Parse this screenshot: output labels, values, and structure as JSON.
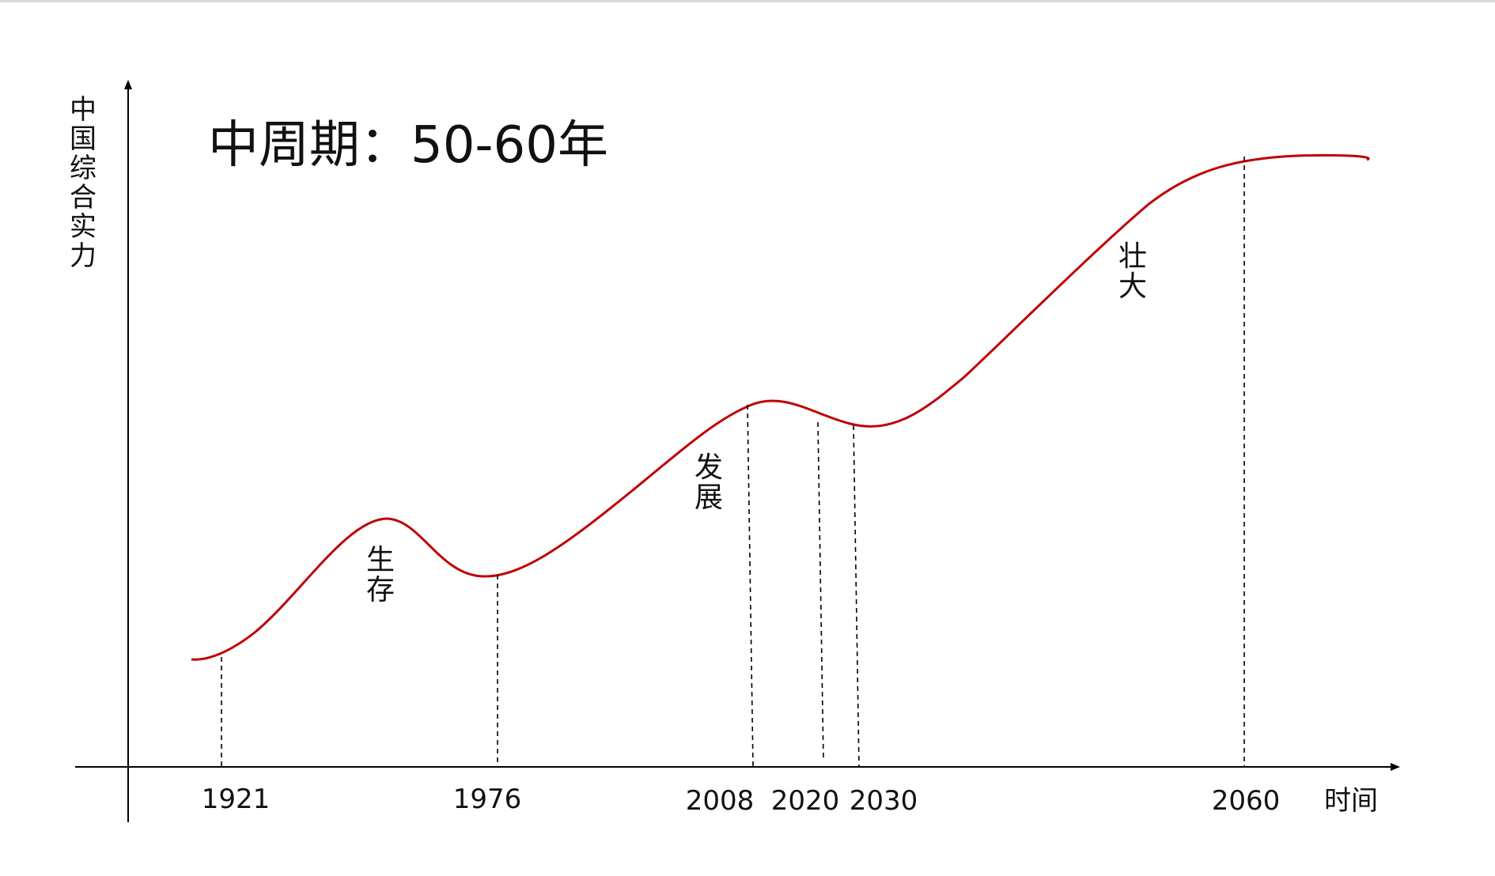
{
  "title": "中周期：50-60年",
  "y_axis_label": "中国综合实力",
  "x_axis_label": "时间",
  "stage_labels": {
    "survival": "生存",
    "development": "发展",
    "growth": "壮大"
  },
  "year_labels": {
    "y1921": "1921",
    "y1976": "1976",
    "y2008": "2008",
    "y2020": "2020",
    "y2030": "2030",
    "y2060": "2060"
  },
  "colors": {
    "curve": "#c00000",
    "axis": "#000000",
    "text": "#111111"
  }
}
